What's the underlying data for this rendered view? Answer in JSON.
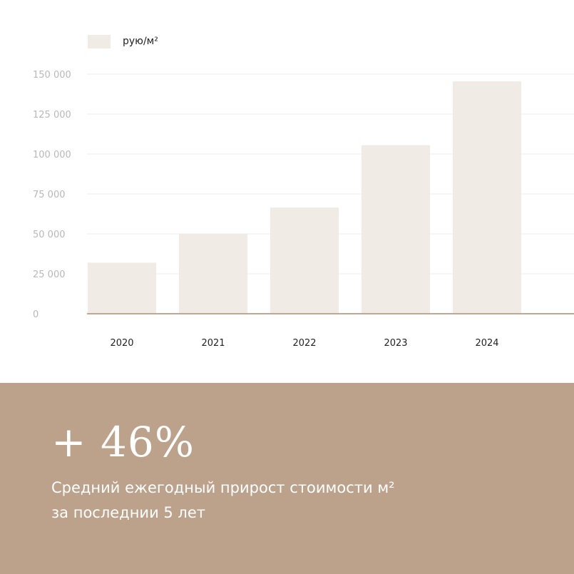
{
  "chart_data": {
    "type": "bar",
    "categories": [
      "2020",
      "2021",
      "2022",
      "2023",
      "2024"
    ],
    "series": [
      {
        "name": "рую/м²",
        "values": [
          32000,
          50000,
          66500,
          105500,
          145500
        ]
      }
    ],
    "yticks": [
      "0",
      "25 000",
      "50 000",
      "75 000",
      "100 000",
      "125 000",
      "150 000"
    ],
    "ytick_values": [
      0,
      25000,
      50000,
      75000,
      100000,
      125000,
      150000
    ],
    "ylim": [
      0,
      150000
    ],
    "grid": true,
    "legend_position": "top-left",
    "bar_color": "#f1ebe6",
    "baseline_color": "#b08a6e"
  },
  "stat": {
    "value": "+ 46%",
    "line1": "Средний ежегодный прирост стоимости м²",
    "line2": "за последнии 5 лет"
  },
  "colors": {
    "panel": "#bca28b",
    "gridline": "#ececec",
    "tick_text": "#b8b8b8"
  }
}
